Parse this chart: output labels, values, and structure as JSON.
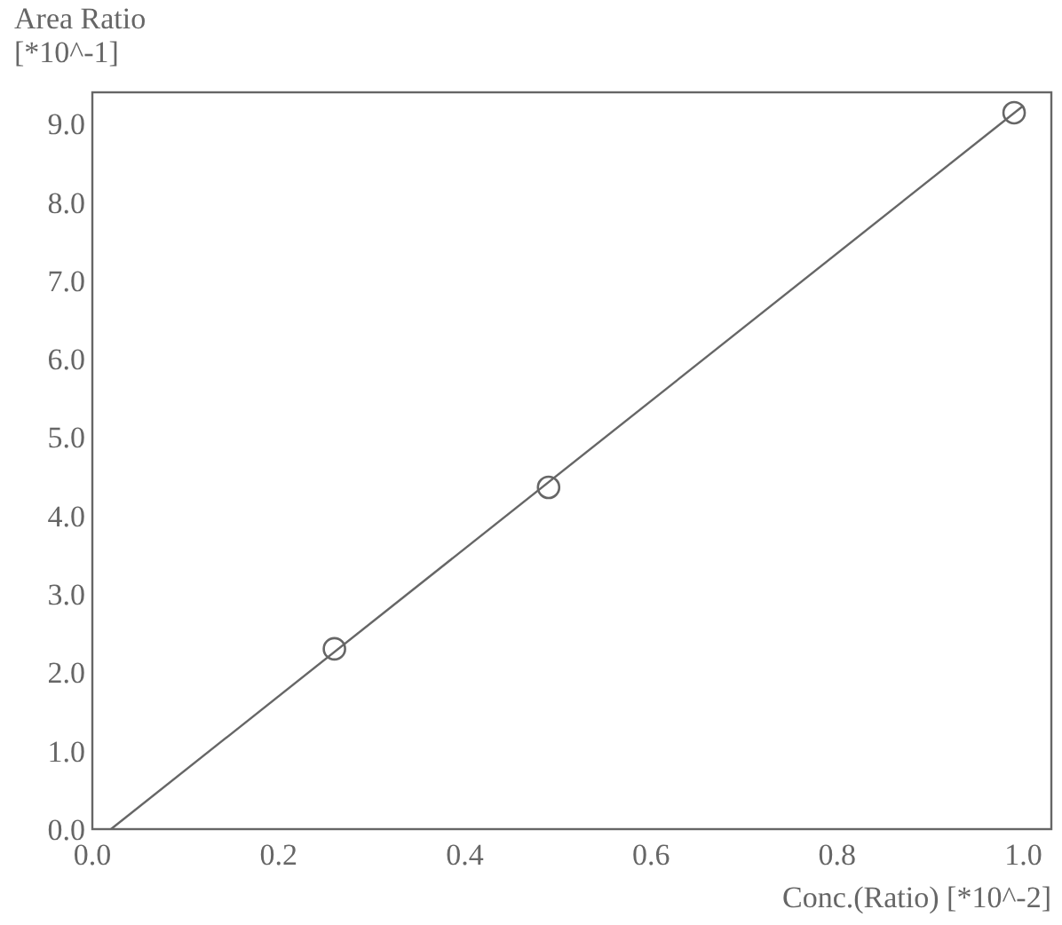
{
  "chart_data": {
    "type": "scatter",
    "xlabel": "Conc.(Ratio) [*10^-2]",
    "ylabel": "Area Ratio\n[*10^-1]",
    "xlim": [
      0,
      1.03
    ],
    "ylim": [
      0,
      9.4
    ],
    "xticks": [
      {
        "value": 0,
        "label": "0.0"
      },
      0.2,
      0.4,
      0.6,
      0.8,
      {
        "value": 1,
        "label": "1.0"
      }
    ],
    "yticks": [
      {
        "value": 0,
        "label": "0.0"
      },
      {
        "value": 1,
        "label": "1.0"
      },
      {
        "value": 2,
        "label": "2.0"
      },
      {
        "value": 3,
        "label": "3.0"
      },
      {
        "value": 4,
        "label": "4.0"
      },
      {
        "value": 5,
        "label": "5.0"
      },
      {
        "value": 6,
        "label": "6.0"
      },
      {
        "value": 7,
        "label": "7.0"
      },
      {
        "value": 8,
        "label": "8.0"
      },
      {
        "value": 9,
        "label": "9.0"
      }
    ],
    "grid": false,
    "marker": "circle",
    "series": [
      {
        "color": "#666666",
        "x": [
          0.26,
          0.49,
          0.99
        ],
        "values": [
          2.3,
          4.36,
          9.14
        ]
      },
      {
        "type": "line",
        "color": "#666666",
        "x": [
          0.02,
          1.0
        ],
        "values": [
          0,
          9.23
        ],
        "line_style": "solid",
        "marker": "none"
      }
    ]
  }
}
